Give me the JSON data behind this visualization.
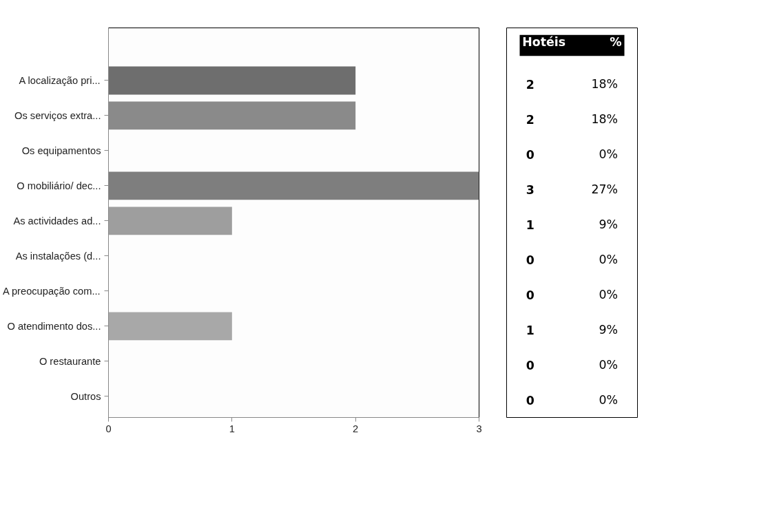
{
  "chart_data": [
    {
      "type": "bar",
      "orientation": "horizontal",
      "categories": [
        "A localização pri...",
        "Os serviços extra...",
        "Os equipamentos",
        "O mobiliário/ dec...",
        "As actividades ad...",
        "As instalações (d...",
        "A preocupação com...",
        "O atendimento dos...",
        "O restaurante",
        "Outros"
      ],
      "values": [
        2,
        2,
        0,
        3,
        1,
        0,
        0,
        1,
        0,
        0
      ],
      "colors": [
        "#6e6e6e",
        "#8a8a8a",
        "#969696",
        "#7e7e7e",
        "#9e9e9e",
        "#a2a2a2",
        "#a5a5a5",
        "#a8a8a8",
        "#aaaaaa",
        "#acacac"
      ],
      "xlim": [
        0,
        3
      ],
      "xticks": [
        0,
        1,
        2,
        3
      ],
      "grid": false
    },
    {
      "type": "other",
      "annotations": [
        "Hotéis",
        "%",
        "2",
        "18%",
        "2",
        "18%",
        "0",
        "0%",
        "3",
        "27%",
        "1",
        "9%",
        "0",
        "0%",
        "0",
        "0%",
        "1",
        "9%",
        "0",
        "0%",
        "0",
        "0%"
      ]
    }
  ]
}
